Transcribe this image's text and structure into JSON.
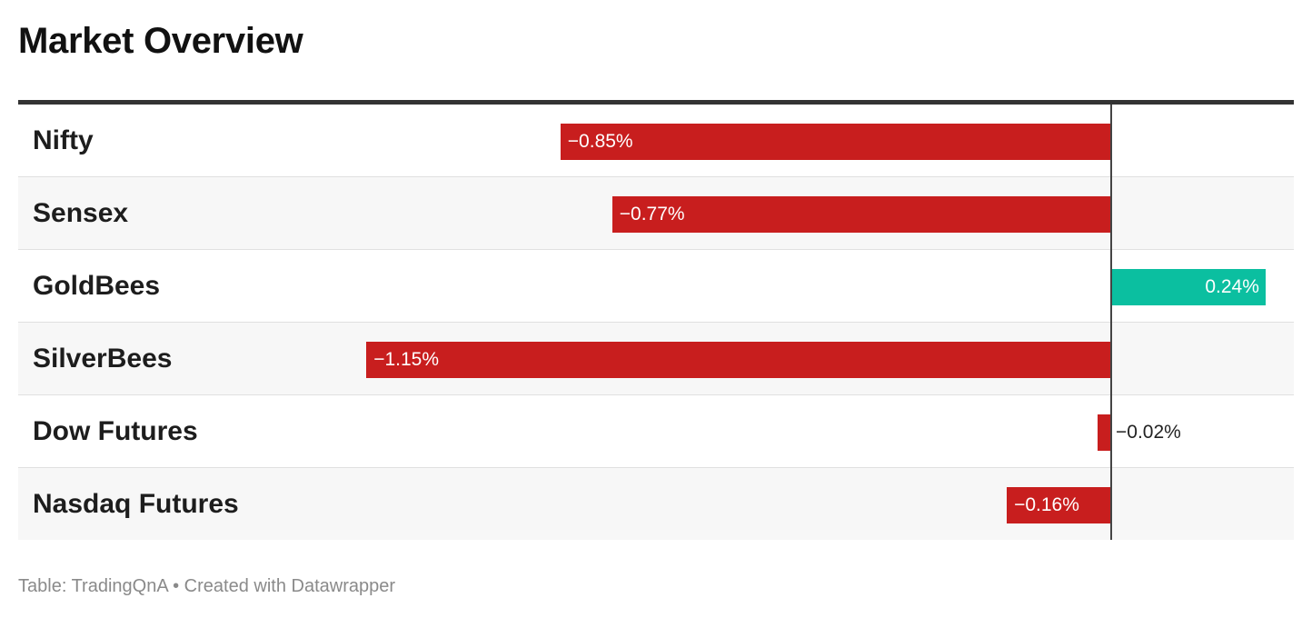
{
  "title": "Market Overview",
  "footer": "Table: TradingQnA • Created with Datawrapper",
  "colors": {
    "negative": "#c81e1e",
    "positive": "#0bbfa0"
  },
  "chart_data": {
    "type": "bar",
    "title": "Market Overview",
    "categories": [
      "Nifty",
      "Sensex",
      "GoldBees",
      "SilverBees",
      "Dow Futures",
      "Nasdaq Futures"
    ],
    "values": [
      -0.85,
      -0.77,
      0.24,
      -1.15,
      -0.02,
      -0.16
    ],
    "labels": [
      "−0.85%",
      "−0.77%",
      "0.24%",
      "−1.15%",
      "−0.02%",
      "−0.16%"
    ],
    "unit": "%",
    "xlim": [
      -1.15,
      0.24
    ]
  }
}
